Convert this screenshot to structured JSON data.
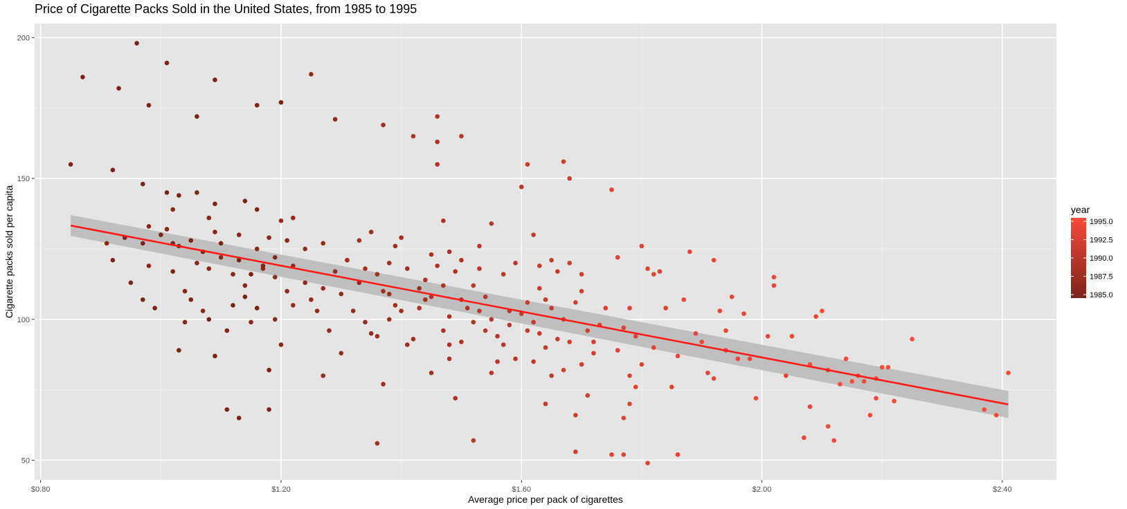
{
  "chart_data": {
    "type": "scatter",
    "title": "Price of Cigarette Packs Sold in the United States, from 1985 to 1995",
    "xlabel": "Average price per pack of cigarettes",
    "ylabel": "Cigarette packs sold per capita",
    "xlim": [
      0.79,
      2.49
    ],
    "ylim": [
      43,
      205
    ],
    "x_ticks": [
      0.8,
      1.2,
      1.6,
      2.0,
      2.4
    ],
    "x_tick_labels": [
      "$0.80",
      "$1.20",
      "$1.60",
      "$2.00",
      "$2.40"
    ],
    "y_ticks": [
      50,
      100,
      150,
      200
    ],
    "y_tick_labels": [
      "50",
      "100",
      "150",
      "200"
    ],
    "grid": true,
    "panel_background": "#e5e5e5",
    "legend": {
      "title": "year",
      "placement": "right",
      "min": 1985,
      "max": 1995,
      "breaks": [
        "1985.0",
        "1987.5",
        "1990.0",
        "1992.5",
        "1995.0"
      ],
      "color_low": "#7a2418",
      "color_high": "#f8493a"
    },
    "trend": {
      "x": [
        0.85,
        2.41
      ],
      "y": [
        133.3,
        69.8
      ],
      "band_lower": [
        129.6,
        65.0
      ],
      "band_upper": [
        137.0,
        74.6
      ],
      "color": "#ff1a1a",
      "band_color": "#bdbdbd"
    },
    "points": [
      [
        0.85,
        155,
        1985
      ],
      [
        0.87,
        186,
        1985
      ],
      [
        0.93,
        182,
        1985
      ],
      [
        0.96,
        198,
        1985
      ],
      [
        0.98,
        176,
        1985
      ],
      [
        1.01,
        191,
        1985
      ],
      [
        1.09,
        185,
        1985
      ],
      [
        1.06,
        172,
        1985
      ],
      [
        1.16,
        176,
        1985
      ],
      [
        1.2,
        177,
        1985
      ],
      [
        0.92,
        153,
        1985
      ],
      [
        0.97,
        148,
        1985
      ],
      [
        1.01,
        145,
        1985
      ],
      [
        1.03,
        144,
        1985
      ],
      [
        1.06,
        145,
        1985
      ],
      [
        1.09,
        141,
        1985
      ],
      [
        1.14,
        142,
        1985
      ],
      [
        1.16,
        139,
        1985
      ],
      [
        0.95,
        113,
        1985
      ],
      [
        0.99,
        104,
        1985
      ],
      [
        1.03,
        89,
        1985
      ],
      [
        1.09,
        87,
        1985
      ],
      [
        1.11,
        68,
        1985
      ],
      [
        1.13,
        65,
        1985
      ],
      [
        1.18,
        68,
        1985
      ],
      [
        1.18,
        82,
        1985
      ],
      [
        0.92,
        121,
        1985
      ],
      [
        0.94,
        129,
        1985
      ],
      [
        0.97,
        127,
        1985
      ],
      [
        1.0,
        130,
        1985
      ],
      [
        1.02,
        127,
        1985
      ],
      [
        1.05,
        128,
        1985
      ],
      [
        1.07,
        124,
        1985
      ],
      [
        1.1,
        127,
        1985
      ],
      [
        1.13,
        121,
        1985
      ],
      [
        1.15,
        116,
        1985
      ],
      [
        1.17,
        119,
        1985
      ],
      [
        0.97,
        107,
        1985
      ],
      [
        1.02,
        117,
        1985
      ],
      [
        1.05,
        107,
        1985
      ],
      [
        1.08,
        100,
        1985
      ],
      [
        1.12,
        105,
        1985
      ],
      [
        1.14,
        108,
        1985
      ],
      [
        1.16,
        104,
        1985
      ],
      [
        0.91,
        127,
        1986
      ],
      [
        0.98,
        119,
        1986
      ],
      [
        1.01,
        132,
        1986
      ],
      [
        1.03,
        126,
        1986
      ],
      [
        1.06,
        120,
        1986
      ],
      [
        1.08,
        118,
        1986
      ],
      [
        1.1,
        122,
        1986
      ],
      [
        1.12,
        116,
        1986
      ],
      [
        1.14,
        112,
        1986
      ],
      [
        1.17,
        118,
        1986
      ],
      [
        1.19,
        122,
        1986
      ],
      [
        1.21,
        128,
        1986
      ],
      [
        0.98,
        133,
        1986
      ],
      [
        1.04,
        110,
        1986
      ],
      [
        1.07,
        103,
        1986
      ],
      [
        1.11,
        96,
        1986
      ],
      [
        1.15,
        99,
        1986
      ],
      [
        1.19,
        100,
        1986
      ],
      [
        1.2,
        91,
        1986
      ],
      [
        1.04,
        99,
        1986
      ],
      [
        1.09,
        131,
        1986
      ],
      [
        1.13,
        130,
        1986
      ],
      [
        1.16,
        125,
        1986
      ],
      [
        1.18,
        129,
        1986
      ],
      [
        1.02,
        139,
        1986
      ],
      [
        1.08,
        136,
        1986
      ],
      [
        1.2,
        135,
        1987
      ],
      [
        1.22,
        119,
        1987
      ],
      [
        1.24,
        113,
        1987
      ],
      [
        1.25,
        107,
        1987
      ],
      [
        1.27,
        111,
        1987
      ],
      [
        1.29,
        117,
        1987
      ],
      [
        1.31,
        121,
        1987
      ],
      [
        1.33,
        113,
        1987
      ],
      [
        1.25,
        187,
        1987
      ],
      [
        1.29,
        171,
        1987
      ],
      [
        1.22,
        136,
        1987
      ],
      [
        1.27,
        127,
        1987
      ],
      [
        1.3,
        109,
        1987
      ],
      [
        1.32,
        103,
        1987
      ],
      [
        1.34,
        99,
        1987
      ],
      [
        1.28,
        96,
        1987
      ],
      [
        1.3,
        88,
        1987
      ],
      [
        1.27,
        80,
        1987
      ],
      [
        1.35,
        95,
        1987
      ],
      [
        1.22,
        105,
        1987
      ],
      [
        1.24,
        125,
        1987
      ],
      [
        1.19,
        115,
        1987
      ],
      [
        1.21,
        110,
        1987
      ],
      [
        1.26,
        103,
        1987
      ],
      [
        1.37,
        169,
        1988
      ],
      [
        1.38,
        109,
        1988
      ],
      [
        1.36,
        116,
        1988
      ],
      [
        1.38,
        100,
        1988
      ],
      [
        1.36,
        94,
        1988
      ],
      [
        1.37,
        77,
        1988
      ],
      [
        1.36,
        56,
        1988
      ],
      [
        1.33,
        128,
        1988
      ],
      [
        1.35,
        131,
        1988
      ],
      [
        1.39,
        126,
        1988
      ],
      [
        1.4,
        103,
        1988
      ],
      [
        1.41,
        118,
        1988
      ],
      [
        1.43,
        111,
        1988
      ],
      [
        1.44,
        107,
        1988
      ],
      [
        1.42,
        93,
        1988
      ],
      [
        1.45,
        81,
        1988
      ],
      [
        1.38,
        120,
        1988
      ],
      [
        1.31,
        121,
        1988
      ],
      [
        1.34,
        118,
        1988
      ],
      [
        1.4,
        129,
        1988
      ],
      [
        1.37,
        110,
        1988
      ],
      [
        1.39,
        105,
        1988
      ],
      [
        1.41,
        91,
        1988
      ],
      [
        1.42,
        165,
        1989
      ],
      [
        1.46,
        172,
        1989
      ],
      [
        1.46,
        163,
        1989
      ],
      [
        1.46,
        155,
        1989
      ],
      [
        1.47,
        135,
        1989
      ],
      [
        1.48,
        124,
        1989
      ],
      [
        1.5,
        121,
        1989
      ],
      [
        1.49,
        117,
        1989
      ],
      [
        1.47,
        112,
        1989
      ],
      [
        1.5,
        107,
        1989
      ],
      [
        1.48,
        101,
        1989
      ],
      [
        1.47,
        96,
        1989
      ],
      [
        1.48,
        91,
        1989
      ],
      [
        1.5,
        92,
        1989
      ],
      [
        1.49,
        72,
        1989
      ],
      [
        1.44,
        114,
        1989
      ],
      [
        1.45,
        108,
        1989
      ],
      [
        1.43,
        104,
        1989
      ],
      [
        1.46,
        119,
        1989
      ],
      [
        1.51,
        104,
        1989
      ],
      [
        1.48,
        86,
        1989
      ],
      [
        1.45,
        123,
        1989
      ],
      [
        1.52,
        99,
        1989
      ],
      [
        1.5,
        165,
        1990
      ],
      [
        1.52,
        112,
        1990
      ],
      [
        1.53,
        126,
        1990
      ],
      [
        1.54,
        108,
        1990
      ],
      [
        1.55,
        100,
        1990
      ],
      [
        1.53,
        103,
        1990
      ],
      [
        1.56,
        94,
        1990
      ],
      [
        1.57,
        91,
        1990
      ],
      [
        1.56,
        85,
        1990
      ],
      [
        1.52,
        57,
        1990
      ],
      [
        1.58,
        103,
        1990
      ],
      [
        1.59,
        120,
        1990
      ],
      [
        1.55,
        81,
        1990
      ],
      [
        1.57,
        116,
        1990
      ],
      [
        1.54,
        96,
        1990
      ],
      [
        1.58,
        98,
        1990
      ],
      [
        1.6,
        147,
        1990
      ],
      [
        1.55,
        134,
        1990
      ],
      [
        1.53,
        118,
        1990
      ],
      [
        1.59,
        86,
        1990
      ],
      [
        1.61,
        155,
        1991
      ],
      [
        1.62,
        130,
        1991
      ],
      [
        1.63,
        111,
        1991
      ],
      [
        1.61,
        106,
        1991
      ],
      [
        1.64,
        107,
        1991
      ],
      [
        1.62,
        99,
        1991
      ],
      [
        1.65,
        104,
        1991
      ],
      [
        1.63,
        95,
        1991
      ],
      [
        1.64,
        90,
        1991
      ],
      [
        1.62,
        85,
        1991
      ],
      [
        1.65,
        80,
        1991
      ],
      [
        1.66,
        93,
        1991
      ],
      [
        1.63,
        119,
        1991
      ],
      [
        1.6,
        102,
        1991
      ],
      [
        1.66,
        117,
        1991
      ],
      [
        1.64,
        70,
        1991
      ],
      [
        1.65,
        121,
        1991
      ],
      [
        1.61,
        96,
        1991
      ],
      [
        1.67,
        156,
        1992
      ],
      [
        1.68,
        150,
        1992
      ],
      [
        1.7,
        116,
        1992
      ],
      [
        1.69,
        106,
        1992
      ],
      [
        1.67,
        100,
        1992
      ],
      [
        1.71,
        96,
        1992
      ],
      [
        1.68,
        92,
        1992
      ],
      [
        1.72,
        88,
        1992
      ],
      [
        1.7,
        84,
        1992
      ],
      [
        1.69,
        66,
        1992
      ],
      [
        1.71,
        73,
        1992
      ],
      [
        1.69,
        53,
        1992
      ],
      [
        1.73,
        98,
        1992
      ],
      [
        1.68,
        120,
        1992
      ],
      [
        1.7,
        110,
        1992
      ],
      [
        1.72,
        92,
        1992
      ],
      [
        1.67,
        82,
        1992
      ],
      [
        1.74,
        104,
        1992
      ],
      [
        1.75,
        146,
        1993
      ],
      [
        1.76,
        122,
        1993
      ],
      [
        1.78,
        104,
        1993
      ],
      [
        1.77,
        97,
        1993
      ],
      [
        1.79,
        94,
        1993
      ],
      [
        1.76,
        89,
        1993
      ],
      [
        1.8,
        84,
        1993
      ],
      [
        1.78,
        80,
        1993
      ],
      [
        1.79,
        76,
        1993
      ],
      [
        1.77,
        65,
        1993
      ],
      [
        1.75,
        52,
        1993
      ],
      [
        1.77,
        52,
        1993
      ],
      [
        1.81,
        49,
        1993
      ],
      [
        1.81,
        118,
        1993
      ],
      [
        1.82,
        116,
        1993
      ],
      [
        1.83,
        117,
        1993
      ],
      [
        1.8,
        126,
        1993
      ],
      [
        1.84,
        104,
        1993
      ],
      [
        1.82,
        90,
        1993
      ],
      [
        1.85,
        76,
        1993
      ],
      [
        1.86,
        52,
        1993
      ],
      [
        1.78,
        70,
        1993
      ],
      [
        1.87,
        107,
        1994
      ],
      [
        1.88,
        124,
        1994
      ],
      [
        1.89,
        95,
        1994
      ],
      [
        1.9,
        92,
        1994
      ],
      [
        1.91,
        81,
        1994
      ],
      [
        1.92,
        121,
        1994
      ],
      [
        1.93,
        103,
        1994
      ],
      [
        1.94,
        89,
        1994
      ],
      [
        1.95,
        108,
        1994
      ],
      [
        1.96,
        86,
        1994
      ],
      [
        1.97,
        102,
        1994
      ],
      [
        1.98,
        86,
        1994
      ],
      [
        1.99,
        72,
        1994
      ],
      [
        2.01,
        94,
        1994
      ],
      [
        2.02,
        115,
        1994
      ],
      [
        2.02,
        112,
        1994
      ],
      [
        2.04,
        80,
        1994
      ],
      [
        2.07,
        58,
        1994
      ],
      [
        2.08,
        69,
        1994
      ],
      [
        2.09,
        101,
        1994
      ],
      [
        1.92,
        79,
        1994
      ],
      [
        1.86,
        87,
        1994
      ],
      [
        1.94,
        96,
        1994
      ],
      [
        2.05,
        94,
        1994
      ],
      [
        2.1,
        103,
        1995
      ],
      [
        2.11,
        62,
        1995
      ],
      [
        2.12,
        57,
        1995
      ],
      [
        2.13,
        77,
        1995
      ],
      [
        2.14,
        86,
        1995
      ],
      [
        2.15,
        78,
        1995
      ],
      [
        2.16,
        80,
        1995
      ],
      [
        2.17,
        78,
        1995
      ],
      [
        2.18,
        66,
        1995
      ],
      [
        2.19,
        79,
        1995
      ],
      [
        2.2,
        83,
        1995
      ],
      [
        2.21,
        83,
        1995
      ],
      [
        2.22,
        71,
        1995
      ],
      [
        2.25,
        93,
        1995
      ],
      [
        2.37,
        68,
        1995
      ],
      [
        2.39,
        66,
        1995
      ],
      [
        2.41,
        81,
        1995
      ],
      [
        2.08,
        84,
        1995
      ],
      [
        2.11,
        82,
        1995
      ],
      [
        2.19,
        72,
        1995
      ]
    ]
  }
}
